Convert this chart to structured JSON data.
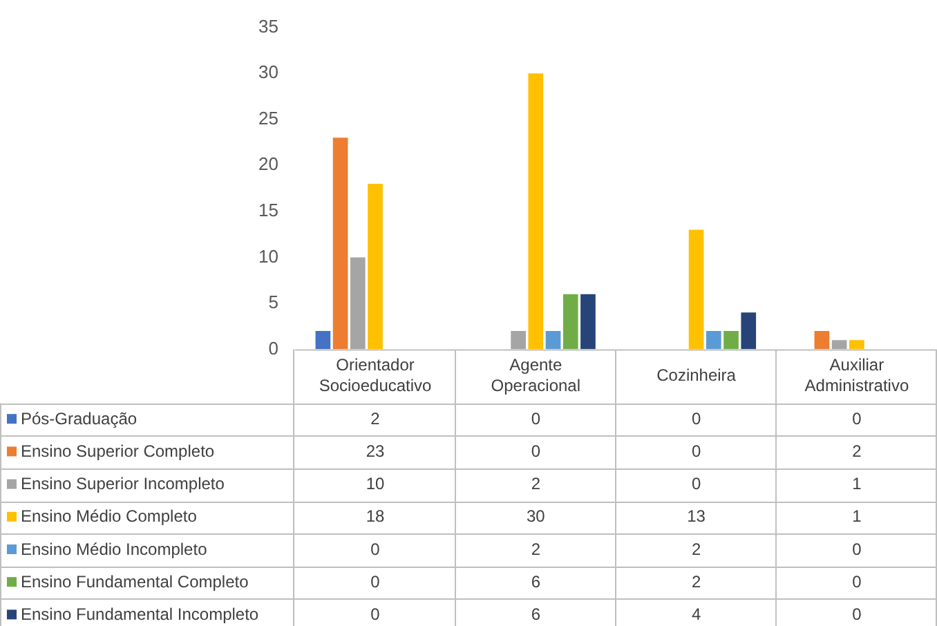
{
  "chart_data": {
    "type": "bar",
    "categories": [
      "Orientador Socioeducativo",
      "Agente Operacional",
      "Cozinheira",
      "Auxiliar Administrativo"
    ],
    "series": [
      {
        "name": "Pós-Graduação",
        "color": "#4472c4",
        "values": [
          2,
          0,
          0,
          0
        ]
      },
      {
        "name": "Ensino Superior Completo",
        "color": "#ed7d31",
        "values": [
          23,
          0,
          0,
          2
        ]
      },
      {
        "name": "Ensino Superior Incompleto",
        "color": "#a5a5a5",
        "values": [
          10,
          2,
          0,
          1
        ]
      },
      {
        "name": "Ensino Médio Completo",
        "color": "#ffc000",
        "values": [
          18,
          30,
          13,
          1
        ]
      },
      {
        "name": "Ensino Médio Incompleto",
        "color": "#5b9bd5",
        "values": [
          0,
          2,
          2,
          0
        ]
      },
      {
        "name": "Ensino Fundamental Completo",
        "color": "#70ad47",
        "values": [
          0,
          6,
          2,
          0
        ]
      },
      {
        "name": "Ensino Fundamental Incompleto",
        "color": "#264478",
        "values": [
          0,
          6,
          4,
          0
        ]
      }
    ],
    "ylim": [
      0,
      35
    ],
    "yticks": [
      0,
      5,
      10,
      15,
      20,
      25,
      30,
      35
    ],
    "grid": false,
    "legend": "bottom",
    "data_labels": true
  }
}
